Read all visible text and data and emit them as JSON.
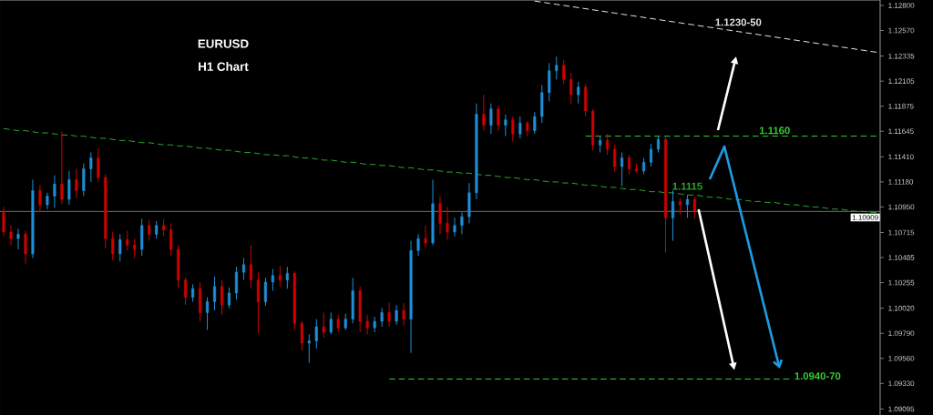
{
  "chart_data": {
    "type": "candlestick",
    "title": "EURUSD",
    "subtitle": "H1 Chart",
    "tick_labels": "y",
    "categories": [
      null,
      null,
      null,
      null,
      null,
      null,
      null,
      null,
      null,
      null,
      null,
      null,
      null,
      null,
      null,
      null,
      null,
      null,
      null,
      null,
      null,
      null,
      null,
      null,
      null,
      null,
      null,
      null,
      null,
      null,
      null,
      null,
      null,
      null,
      null,
      null,
      null,
      null,
      null,
      null,
      null,
      null,
      null,
      null,
      null,
      null,
      null,
      null,
      null,
      null,
      null,
      null,
      null,
      null,
      null,
      null,
      null,
      null,
      null,
      null,
      null,
      null,
      null,
      null,
      null,
      null,
      null,
      null,
      null,
      null,
      null,
      null,
      null,
      null,
      null,
      null,
      null,
      null,
      null,
      null,
      null,
      null,
      null,
      null,
      null,
      null,
      null,
      null,
      null,
      null,
      null,
      null,
      null,
      null,
      null,
      null,
      null,
      null,
      null,
      null,
      null,
      null,
      null,
      null,
      null,
      null,
      null,
      null,
      null,
      null,
      null,
      null,
      null,
      null,
      null,
      null,
      null,
      null,
      null,
      null,
      null
    ],
    "ohlc": [
      [
        1.109,
        1.1095,
        1.1068,
        1.1072
      ],
      [
        1.1072,
        1.1078,
        1.106,
        1.1066
      ],
      [
        1.1066,
        1.1075,
        1.1056,
        1.107
      ],
      [
        1.107,
        1.1073,
        1.1043,
        1.1052
      ],
      [
        1.1052,
        1.112,
        1.1048,
        1.111
      ],
      [
        1.111,
        1.1115,
        1.1091,
        1.1097
      ],
      [
        1.1097,
        1.1108,
        1.1093,
        1.1105
      ],
      [
        1.1105,
        1.1124,
        1.1094,
        1.1116
      ],
      [
        1.1116,
        1.1164,
        1.1098,
        1.1102
      ],
      [
        1.1102,
        1.1128,
        1.1097,
        1.112
      ],
      [
        1.112,
        1.113,
        1.1103,
        1.111
      ],
      [
        1.111,
        1.1135,
        1.1105,
        1.113
      ],
      [
        1.113,
        1.1145,
        1.1118,
        1.114
      ],
      [
        1.114,
        1.1149,
        1.1118,
        1.1122
      ],
      [
        1.1122,
        1.1125,
        1.1057,
        1.1066
      ],
      [
        1.1066,
        1.1072,
        1.1046,
        1.1052
      ],
      [
        1.1052,
        1.107,
        1.1045,
        1.1065
      ],
      [
        1.1065,
        1.1073,
        1.1055,
        1.106
      ],
      [
        1.106,
        1.1066,
        1.1048,
        1.1056
      ],
      [
        1.1056,
        1.1084,
        1.105,
        1.1078
      ],
      [
        1.1078,
        1.1083,
        1.1064,
        1.107
      ],
      [
        1.107,
        1.1082,
        1.1066,
        1.1078
      ],
      [
        1.1078,
        1.1084,
        1.1068,
        1.1074
      ],
      [
        1.1074,
        1.108,
        1.105,
        1.1056
      ],
      [
        1.1056,
        1.106,
        1.1021,
        1.1028
      ],
      [
        1.1028,
        1.103,
        1.1005,
        1.1012
      ],
      [
        1.1012,
        1.1024,
        1.1008,
        1.102
      ],
      [
        1.102,
        1.1026,
        1.099,
        1.0998
      ],
      [
        1.0998,
        1.1012,
        1.0982,
        1.1008
      ],
      [
        1.1008,
        1.1031,
        1.1,
        1.1022
      ],
      [
        1.1022,
        1.1028,
        1.0996,
        1.1005
      ],
      [
        1.1005,
        1.1021,
        1.1002,
        1.1016
      ],
      [
        1.1016,
        1.104,
        1.101,
        1.1035
      ],
      [
        1.1035,
        1.1048,
        1.1028,
        1.1042
      ],
      [
        1.1042,
        1.106,
        1.102,
        1.1028
      ],
      [
        1.1028,
        1.1035,
        1.0979,
        1.1008
      ],
      [
        1.1008,
        1.103,
        1.1004,
        1.1026
      ],
      [
        1.1026,
        1.1038,
        1.1018,
        1.1032
      ],
      [
        1.1032,
        1.1041,
        1.1022,
        1.1028
      ],
      [
        1.1028,
        1.104,
        1.102,
        1.1034
      ],
      [
        1.1034,
        1.1036,
        1.0982,
        1.0988
      ],
      [
        1.0988,
        1.099,
        1.0963,
        1.097
      ],
      [
        1.097,
        1.0978,
        1.0952,
        1.0972
      ],
      [
        1.0972,
        1.0992,
        1.0965,
        1.0985
      ],
      [
        1.0985,
        1.0998,
        1.0975,
        1.098
      ],
      [
        1.098,
        1.0998,
        1.0978,
        1.0992
      ],
      [
        1.0992,
        1.0996,
        1.098,
        1.0984
      ],
      [
        1.0984,
        1.0997,
        1.0982,
        1.0992
      ],
      [
        1.0992,
        1.103,
        1.0988,
        1.1018
      ],
      [
        1.1018,
        1.1022,
        1.098,
        1.099
      ],
      [
        1.099,
        1.0996,
        1.0978,
        1.0984
      ],
      [
        1.0984,
        1.0994,
        1.098,
        1.099
      ],
      [
        1.099,
        1.1002,
        1.0985,
        1.0998
      ],
      [
        1.0998,
        1.1007,
        1.0985,
        1.099
      ],
      [
        1.099,
        1.1005,
        1.0987,
        1.1
      ],
      [
        1.1,
        1.1007,
        1.0986,
        1.0992
      ],
      [
        1.0992,
        1.1064,
        1.0961,
        1.1055
      ],
      [
        1.1055,
        1.107,
        1.105,
        1.1066
      ],
      [
        1.1066,
        1.1078,
        1.1058,
        1.1062
      ],
      [
        1.1062,
        1.112,
        1.106,
        1.1098
      ],
      [
        1.1098,
        1.1105,
        1.107,
        1.108
      ],
      [
        1.108,
        1.1095,
        1.1065,
        1.1072
      ],
      [
        1.1072,
        1.1085,
        1.1068,
        1.1078
      ],
      [
        1.1078,
        1.109,
        1.107,
        1.1086
      ],
      [
        1.1086,
        1.1117,
        1.108,
        1.1108
      ],
      [
        1.1108,
        1.119,
        1.1102,
        1.118
      ],
      [
        1.118,
        1.1198,
        1.1165,
        1.117
      ],
      [
        1.117,
        1.119,
        1.1162,
        1.1185
      ],
      [
        1.1185,
        1.1188,
        1.1165,
        1.117
      ],
      [
        1.117,
        1.118,
        1.116,
        1.1175
      ],
      [
        1.1175,
        1.1178,
        1.1155,
        1.1162
      ],
      [
        1.1162,
        1.1178,
        1.1158,
        1.1172
      ],
      [
        1.1172,
        1.1174,
        1.116,
        1.1165
      ],
      [
        1.1165,
        1.1182,
        1.1162,
        1.1178
      ],
      [
        1.1178,
        1.1207,
        1.1172,
        1.12
      ],
      [
        1.12,
        1.1227,
        1.1192,
        1.122
      ],
      [
        1.122,
        1.1233,
        1.1212,
        1.1225
      ],
      [
        1.1225,
        1.123,
        1.1208,
        1.1212
      ],
      [
        1.1212,
        1.1218,
        1.119,
        1.1198
      ],
      [
        1.1198,
        1.121,
        1.119,
        1.1205
      ],
      [
        1.1205,
        1.1208,
        1.1178,
        1.1183
      ],
      [
        1.1183,
        1.1185,
        1.1147,
        1.1152
      ],
      [
        1.1152,
        1.116,
        1.1145,
        1.1156
      ],
      [
        1.1156,
        1.1162,
        1.1143,
        1.1148
      ],
      [
        1.1148,
        1.1152,
        1.1127,
        1.1132
      ],
      [
        1.1132,
        1.1145,
        1.1114,
        1.114
      ],
      [
        1.114,
        1.1143,
        1.1125,
        1.113
      ],
      [
        1.113,
        1.1135,
        1.1126,
        1.1128
      ],
      [
        1.1128,
        1.114,
        1.1125,
        1.1136
      ],
      [
        1.1136,
        1.1153,
        1.1132,
        1.1148
      ],
      [
        1.1148,
        1.116,
        1.1145,
        1.1157
      ],
      [
        1.1157,
        1.116,
        1.1053,
        1.1085
      ],
      [
        1.1085,
        1.111,
        1.1064,
        1.11
      ],
      [
        1.11,
        1.1103,
        1.1088,
        1.1097
      ],
      [
        1.1097,
        1.1106,
        1.1085,
        1.1102
      ],
      [
        1.1102,
        1.1104,
        1.1084,
        1.1091
      ],
      null,
      null,
      null,
      null,
      null,
      null,
      null,
      null,
      null,
      null,
      null,
      null,
      null,
      null,
      null,
      null,
      null,
      null,
      null,
      null,
      null,
      null,
      null,
      null,
      null
    ],
    "colors": [
      "#d00000",
      "#d00000",
      "#1e90d8",
      "#d00000",
      "#1e90d8",
      "#d00000",
      "#1e90d8",
      "#1e90d8",
      "#d00000",
      "#1e90d8",
      "#d00000",
      "#1e90d8",
      "#1e90d8",
      "#d00000",
      "#d00000",
      "#d00000",
      "#1e90d8",
      "#d00000",
      "#d00000",
      "#1e90d8",
      "#d00000",
      "#1e90d8",
      "#d00000",
      "#d00000",
      "#d00000",
      "#d00000",
      "#1e90d8",
      "#d00000",
      "#1e90d8",
      "#1e90d8",
      "#d00000",
      "#1e90d8",
      "#1e90d8",
      "#1e90d8",
      "#d00000",
      "#d00000",
      "#1e90d8",
      "#1e90d8",
      "#d00000",
      "#1e90d8",
      "#d00000",
      "#d00000",
      "#1e90d8",
      "#1e90d8",
      "#d00000",
      "#1e90d8",
      "#d00000",
      "#1e90d8",
      "#1e90d8",
      "#d00000",
      "#d00000",
      "#1e90d8",
      "#1e90d8",
      "#d00000",
      "#1e90d8",
      "#d00000",
      "#1e90d8",
      "#1e90d8",
      "#d00000",
      "#1e90d8",
      "#d00000",
      "#d00000",
      "#1e90d8",
      "#1e90d8",
      "#1e90d8",
      "#1e90d8",
      "#d00000",
      "#1e90d8",
      "#d00000",
      "#1e90d8",
      "#d00000",
      "#1e90d8",
      "#d00000",
      "#1e90d8",
      "#1e90d8",
      "#1e90d8",
      "#1e90d8",
      "#d00000",
      "#d00000",
      "#1e90d8",
      "#d00000",
      "#d00000",
      "#1e90d8",
      "#d00000",
      "#d00000",
      "#1e90d8",
      "#d00000",
      "#d00000",
      "#1e90d8",
      "#1e90d8",
      "#1e90d8",
      "#d00000",
      "#1e90d8",
      "#d00000",
      "#1e90d8",
      "#d00000",
      null,
      null,
      null,
      null,
      null,
      null,
      null,
      null,
      null,
      null,
      null,
      null,
      null,
      null,
      null,
      null,
      null,
      null,
      null,
      null,
      null,
      null,
      null,
      null,
      null
    ],
    "ylim": [
      1.0904,
      1.1285
    ],
    "yticks": [
      {
        "value": 1.128,
        "label": "1.12800"
      },
      {
        "value": 1.1257,
        "label": "1.12570"
      },
      1.12335,
      1.12105,
      1.11875,
      1.11645,
      {
        "value": 1.1141,
        "label": "1.11410"
      },
      {
        "value": 1.1118,
        "label": "1.11180"
      },
      {
        "value": 1.1095,
        "label": "1.10950"
      },
      1.10715,
      1.10485,
      1.10255,
      {
        "value": 1.1002,
        "label": "1.10020"
      },
      {
        "value": 1.0979,
        "label": "1.09790"
      },
      {
        "value": 1.0956,
        "label": "1.09560"
      },
      {
        "value": 1.0933,
        "label": "1.09330"
      },
      1.09095
    ],
    "ref_lines": [
      {
        "axis": "y",
        "value": 1.10909,
        "label": "1.10909",
        "color": "#a0a0a0"
      }
    ],
    "series": [
      {
        "type": "line",
        "name": "1.1115",
        "color": "#2aa82a",
        "line_style": "dashed",
        "values": [
          1.1167,
          1.1166,
          1.1165,
          1.1165,
          1.1164,
          1.1163,
          1.1163,
          1.1162,
          1.1161,
          1.1161,
          1.116,
          1.116,
          1.1159,
          1.1158,
          1.1158,
          1.1157,
          1.1156,
          1.1156,
          1.1155,
          1.1154,
          1.1154,
          1.1153,
          1.1152,
          1.1152,
          1.1151,
          1.1151,
          1.115,
          1.1149,
          1.1149,
          1.1148,
          1.1147,
          1.1147,
          1.1146,
          1.1145,
          1.1145,
          1.1144,
          1.1143,
          1.1143,
          1.1142,
          1.1142,
          1.1141,
          1.114,
          1.114,
          1.1139,
          1.1138,
          1.1138,
          1.1137,
          1.1136,
          1.1136,
          1.1135,
          1.1134,
          1.1134,
          1.1133,
          1.1133,
          1.1132,
          1.1131,
          1.1131,
          1.113,
          1.1129,
          1.1129,
          1.1128,
          1.1127,
          1.1127,
          1.1126,
          1.1126,
          1.1125,
          1.1124,
          1.1124,
          1.1123,
          1.1122,
          1.1122,
          1.1121,
          1.112,
          1.112,
          1.1119,
          1.1118,
          1.1118,
          1.1117,
          1.1117,
          1.1116,
          1.1115,
          1.1115,
          1.1114,
          1.1113,
          1.1113,
          1.1112,
          1.1111,
          1.1111,
          1.111,
          1.1109,
          1.1109,
          1.1108,
          1.1108,
          1.1107,
          1.1106,
          1.1106,
          1.1105,
          1.1104,
          1.1104,
          1.1103,
          1.1102,
          1.1102,
          1.1101,
          1.11,
          1.11,
          1.1099,
          1.1099,
          1.1098,
          1.1097,
          1.1097,
          1.1096,
          1.1095,
          1.1095,
          1.1094,
          1.1093,
          1.1093,
          1.1092,
          1.1091,
          1.1091,
          1.109,
          1.109
        ]
      },
      {
        "type": "line",
        "name": "1.1230-50",
        "color": "#e6e6e6",
        "line_style": "dashed",
        "values": [
          null,
          null,
          null,
          null,
          null,
          null,
          null,
          null,
          null,
          null,
          null,
          null,
          null,
          null,
          null,
          null,
          null,
          null,
          null,
          null,
          null,
          null,
          null,
          null,
          null,
          null,
          null,
          null,
          null,
          null,
          null,
          null,
          null,
          null,
          null,
          null,
          null,
          null,
          null,
          null,
          null,
          null,
          null,
          null,
          null,
          null,
          null,
          null,
          null,
          null,
          null,
          null,
          null,
          null,
          null,
          null,
          null,
          null,
          null,
          null,
          null,
          null,
          null,
          null,
          null,
          null,
          null,
          null,
          null,
          null,
          null,
          null,
          null,
          1.1284,
          1.1283,
          1.1282,
          1.1281,
          1.128,
          1.1279,
          1.1278,
          1.1277,
          1.1276,
          1.1275,
          1.1274,
          1.1273,
          1.1272,
          1.1271,
          1.127,
          1.1269,
          1.1268,
          1.1267,
          1.1266,
          1.1265,
          1.1264,
          1.1263,
          1.1262,
          1.1261,
          1.126,
          1.1259,
          1.1258,
          1.1257,
          1.1256,
          1.1255,
          1.1254,
          1.1253,
          1.1252,
          1.1251,
          1.125,
          1.1249,
          1.1248,
          1.1247,
          1.1246,
          1.1245,
          1.1244,
          1.1243,
          1.1242,
          1.1241,
          1.124,
          1.1239,
          1.1238,
          1.1237
        ]
      },
      {
        "type": "line",
        "name": "1.1160",
        "color": "#33cc33",
        "line_style": "dashed",
        "values": [
          null,
          null,
          null,
          null,
          null,
          null,
          null,
          null,
          null,
          null,
          null,
          null,
          null,
          null,
          null,
          null,
          null,
          null,
          null,
          null,
          null,
          null,
          null,
          null,
          null,
          null,
          null,
          null,
          null,
          null,
          null,
          null,
          null,
          null,
          null,
          null,
          null,
          null,
          null,
          null,
          null,
          null,
          null,
          null,
          null,
          null,
          null,
          null,
          null,
          null,
          null,
          null,
          null,
          null,
          null,
          null,
          null,
          null,
          null,
          null,
          null,
          null,
          null,
          null,
          null,
          null,
          null,
          null,
          null,
          null,
          null,
          null,
          null,
          null,
          null,
          null,
          null,
          null,
          null,
          null,
          1.116,
          1.116,
          1.116,
          1.116,
          1.116,
          1.116,
          1.116,
          1.116,
          1.116,
          1.116,
          1.116,
          1.116,
          1.116,
          1.116,
          1.116,
          1.116,
          1.116,
          1.116,
          1.116,
          1.116,
          1.116,
          1.116,
          1.116,
          1.116,
          1.116,
          1.116,
          1.116,
          1.116,
          1.116,
          1.116,
          1.116,
          1.116,
          1.116,
          1.116,
          1.116,
          1.116,
          1.116,
          1.116,
          1.116,
          1.116,
          1.116
        ]
      },
      {
        "type": "line",
        "name": "1.0940-70",
        "color": "#33cc33",
        "line_style": "dashed",
        "values": [
          null,
          null,
          null,
          null,
          null,
          null,
          null,
          null,
          null,
          null,
          null,
          null,
          null,
          null,
          null,
          null,
          null,
          null,
          null,
          null,
          null,
          null,
          null,
          null,
          null,
          null,
          null,
          null,
          null,
          null,
          null,
          null,
          null,
          null,
          null,
          null,
          null,
          null,
          null,
          null,
          null,
          null,
          null,
          null,
          null,
          null,
          null,
          null,
          null,
          null,
          null,
          null,
          null,
          1.0937,
          1.0937,
          1.0937,
          1.0937,
          1.0937,
          1.0937,
          1.0937,
          1.0937,
          1.0937,
          1.0937,
          1.0937,
          1.0937,
          1.0937,
          1.0937,
          1.0937,
          1.0937,
          1.0937,
          1.0937,
          1.0937,
          1.0937,
          1.0937,
          1.0937,
          1.0937,
          1.0937,
          1.0937,
          1.0937,
          1.0937,
          1.0937,
          1.0937,
          1.0937,
          1.0937,
          1.0937,
          1.0937,
          1.0937,
          1.0937,
          1.0937,
          1.0937,
          1.0937,
          1.0937,
          1.0937,
          1.0937,
          1.0937,
          1.0937,
          1.0937,
          1.0937,
          1.0937,
          1.0937,
          1.0937,
          1.0937,
          1.0937,
          1.0937,
          1.0937,
          1.0937,
          1.0937,
          1.0937,
          1.0937,
          null,
          null,
          null,
          null,
          null,
          null,
          null,
          null,
          null,
          null,
          null,
          null
        ]
      }
    ]
  }
}
